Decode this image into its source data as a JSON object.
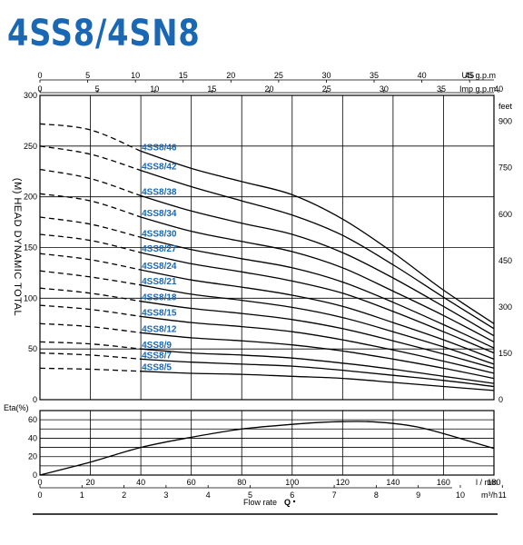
{
  "title": "4SS8/4SN8",
  "colors": {
    "title": "#1a68b3",
    "curve_label": "#1a68b3",
    "line": "#000000"
  },
  "chart_data": [
    {
      "type": "line",
      "ylabel": "(M) HEAD DYNAMIC TOTAL",
      "ylim": [
        0,
        300
      ],
      "xlim": [
        0,
        180
      ],
      "y_ticks": [
        "0",
        "50",
        "100",
        "150",
        "200",
        "250",
        "300"
      ],
      "right_axis": {
        "unit": "feet",
        "ticks": [
          "0",
          "150",
          "300",
          "450",
          "600",
          "750",
          "900"
        ]
      },
      "top_axes": [
        {
          "unit": "US g.p.m",
          "ticks": [
            "0",
            "5",
            "10",
            "15",
            "20",
            "25",
            "30",
            "35",
            "40",
            "45"
          ]
        },
        {
          "unit": "Imp g.p.m",
          "ticks": [
            "0",
            "5",
            "10",
            "15",
            "20",
            "25",
            "30",
            "35",
            "40"
          ]
        }
      ],
      "grid": true,
      "dashed_below_x": 40,
      "series": [
        {
          "name": "4SS8/46",
          "values": [
            [
              0,
              272
            ],
            [
              20,
              266
            ],
            [
              40,
              245
            ],
            [
              60,
              228
            ],
            [
              80,
              215
            ],
            [
              100,
              202
            ],
            [
              120,
              178
            ],
            [
              140,
              145
            ],
            [
              160,
              108
            ],
            [
              180,
              75
            ]
          ]
        },
        {
          "name": "4SS8/42",
          "values": [
            [
              0,
              250
            ],
            [
              20,
              242
            ],
            [
              40,
              226
            ],
            [
              60,
              210
            ],
            [
              80,
              196
            ],
            [
              100,
              182
            ],
            [
              120,
              162
            ],
            [
              140,
              133
            ],
            [
              160,
              101
            ],
            [
              180,
              70
            ]
          ]
        },
        {
          "name": "4SS8/38",
          "values": [
            [
              0,
              227
            ],
            [
              20,
              218
            ],
            [
              40,
              201
            ],
            [
              60,
              186
            ],
            [
              80,
              174
            ],
            [
              100,
              163
            ],
            [
              120,
              145
            ],
            [
              140,
              120
            ],
            [
              160,
              92
            ],
            [
              180,
              63
            ]
          ]
        },
        {
          "name": "4SS8/34",
          "values": [
            [
              0,
              203
            ],
            [
              20,
              196
            ],
            [
              40,
              180
            ],
            [
              60,
              166
            ],
            [
              80,
              156
            ],
            [
              100,
              146
            ],
            [
              120,
              130
            ],
            [
              140,
              107
            ],
            [
              160,
              83
            ],
            [
              180,
              57
            ]
          ]
        },
        {
          "name": "4SS8/30",
          "values": [
            [
              0,
              180
            ],
            [
              20,
              173
            ],
            [
              40,
              160
            ],
            [
              60,
              148
            ],
            [
              80,
              139
            ],
            [
              100,
              130
            ],
            [
              120,
              116
            ],
            [
              140,
              96
            ],
            [
              160,
              74
            ],
            [
              180,
              51
            ]
          ]
        },
        {
          "name": "4SS8/27",
          "values": [
            [
              0,
              163
            ],
            [
              20,
              157
            ],
            [
              40,
              145
            ],
            [
              60,
              134
            ],
            [
              80,
              126
            ],
            [
              100,
              117
            ],
            [
              120,
              105
            ],
            [
              140,
              87
            ],
            [
              160,
              67
            ],
            [
              180,
              46
            ]
          ]
        },
        {
          "name": "4SS8/24",
          "values": [
            [
              0,
              144
            ],
            [
              20,
              138
            ],
            [
              40,
              128
            ],
            [
              60,
              118
            ],
            [
              80,
              111
            ],
            [
              100,
              103
            ],
            [
              120,
              92
            ],
            [
              140,
              76
            ],
            [
              160,
              59
            ],
            [
              180,
              40
            ]
          ]
        },
        {
          "name": "4SS8/21",
          "values": [
            [
              0,
              127
            ],
            [
              20,
              121
            ],
            [
              40,
              113
            ],
            [
              60,
              104
            ],
            [
              80,
              98
            ],
            [
              100,
              91
            ],
            [
              120,
              81
            ],
            [
              140,
              67
            ],
            [
              160,
              52
            ],
            [
              180,
              35
            ]
          ]
        },
        {
          "name": "4SS8/18",
          "values": [
            [
              0,
              110
            ],
            [
              20,
              105
            ],
            [
              40,
              97
            ],
            [
              60,
              90
            ],
            [
              80,
              85
            ],
            [
              100,
              79
            ],
            [
              120,
              70
            ],
            [
              140,
              58
            ],
            [
              160,
              45
            ],
            [
              180,
              31
            ]
          ]
        },
        {
          "name": "4SS8/15",
          "values": [
            [
              0,
              93
            ],
            [
              20,
              89
            ],
            [
              40,
              82
            ],
            [
              60,
              76
            ],
            [
              80,
              72
            ],
            [
              100,
              67
            ],
            [
              120,
              59
            ],
            [
              140,
              49
            ],
            [
              160,
              38
            ],
            [
              180,
              26
            ]
          ]
        },
        {
          "name": "4SS8/12",
          "values": [
            [
              0,
              75
            ],
            [
              20,
              72
            ],
            [
              40,
              66
            ],
            [
              60,
              61
            ],
            [
              80,
              58
            ],
            [
              100,
              54
            ],
            [
              120,
              48
            ],
            [
              140,
              40
            ],
            [
              160,
              31
            ],
            [
              180,
              21
            ]
          ]
        },
        {
          "name": "4SS8/9",
          "values": [
            [
              0,
              57
            ],
            [
              20,
              55
            ],
            [
              40,
              50
            ],
            [
              60,
              46
            ],
            [
              80,
              44
            ],
            [
              100,
              41
            ],
            [
              120,
              36
            ],
            [
              140,
              30
            ],
            [
              160,
              23
            ],
            [
              180,
              16
            ]
          ]
        },
        {
          "name": "4SS8/7",
          "values": [
            [
              0,
              46
            ],
            [
              20,
              44
            ],
            [
              40,
              40
            ],
            [
              60,
              37
            ],
            [
              80,
              35
            ],
            [
              100,
              33
            ],
            [
              120,
              29
            ],
            [
              140,
              24
            ],
            [
              160,
              19
            ],
            [
              180,
              13
            ]
          ]
        },
        {
          "name": "4SS8/5",
          "values": [
            [
              0,
              31
            ],
            [
              20,
              30
            ],
            [
              40,
              28
            ],
            [
              60,
              26
            ],
            [
              80,
              25
            ],
            [
              100,
              23
            ],
            [
              120,
              21
            ],
            [
              140,
              17
            ],
            [
              160,
              13
            ],
            [
              180,
              9
            ]
          ]
        }
      ]
    },
    {
      "type": "line",
      "ylabel": "Eta(%)",
      "ylim": [
        0,
        70
      ],
      "xlim": [
        0,
        180
      ],
      "y_ticks": [
        "0",
        "20",
        "40",
        "60"
      ],
      "grid": true,
      "series": [
        {
          "values": [
            [
              0,
              0
            ],
            [
              20,
              14
            ],
            [
              40,
              30
            ],
            [
              60,
              41
            ],
            [
              80,
              50
            ],
            [
              100,
              55
            ],
            [
              110,
              57
            ],
            [
              120,
              58
            ],
            [
              130,
              58
            ],
            [
              140,
              56
            ],
            [
              150,
              52
            ],
            [
              160,
              45
            ],
            [
              170,
              37
            ],
            [
              180,
              29
            ]
          ]
        }
      ]
    }
  ],
  "bottom_axes": {
    "lmin": {
      "unit": "l / min",
      "ticks": [
        "0",
        "20",
        "40",
        "60",
        "80",
        "100",
        "120",
        "140",
        "160",
        "180"
      ]
    },
    "m3h": {
      "unit": "m³/h",
      "ticks": [
        "0",
        "1",
        "2",
        "3",
        "4",
        "5",
        "6",
        "7",
        "8",
        "9",
        "10",
        "11"
      ]
    },
    "flow_label": "Flow rate",
    "flow_symbol": "Q"
  }
}
